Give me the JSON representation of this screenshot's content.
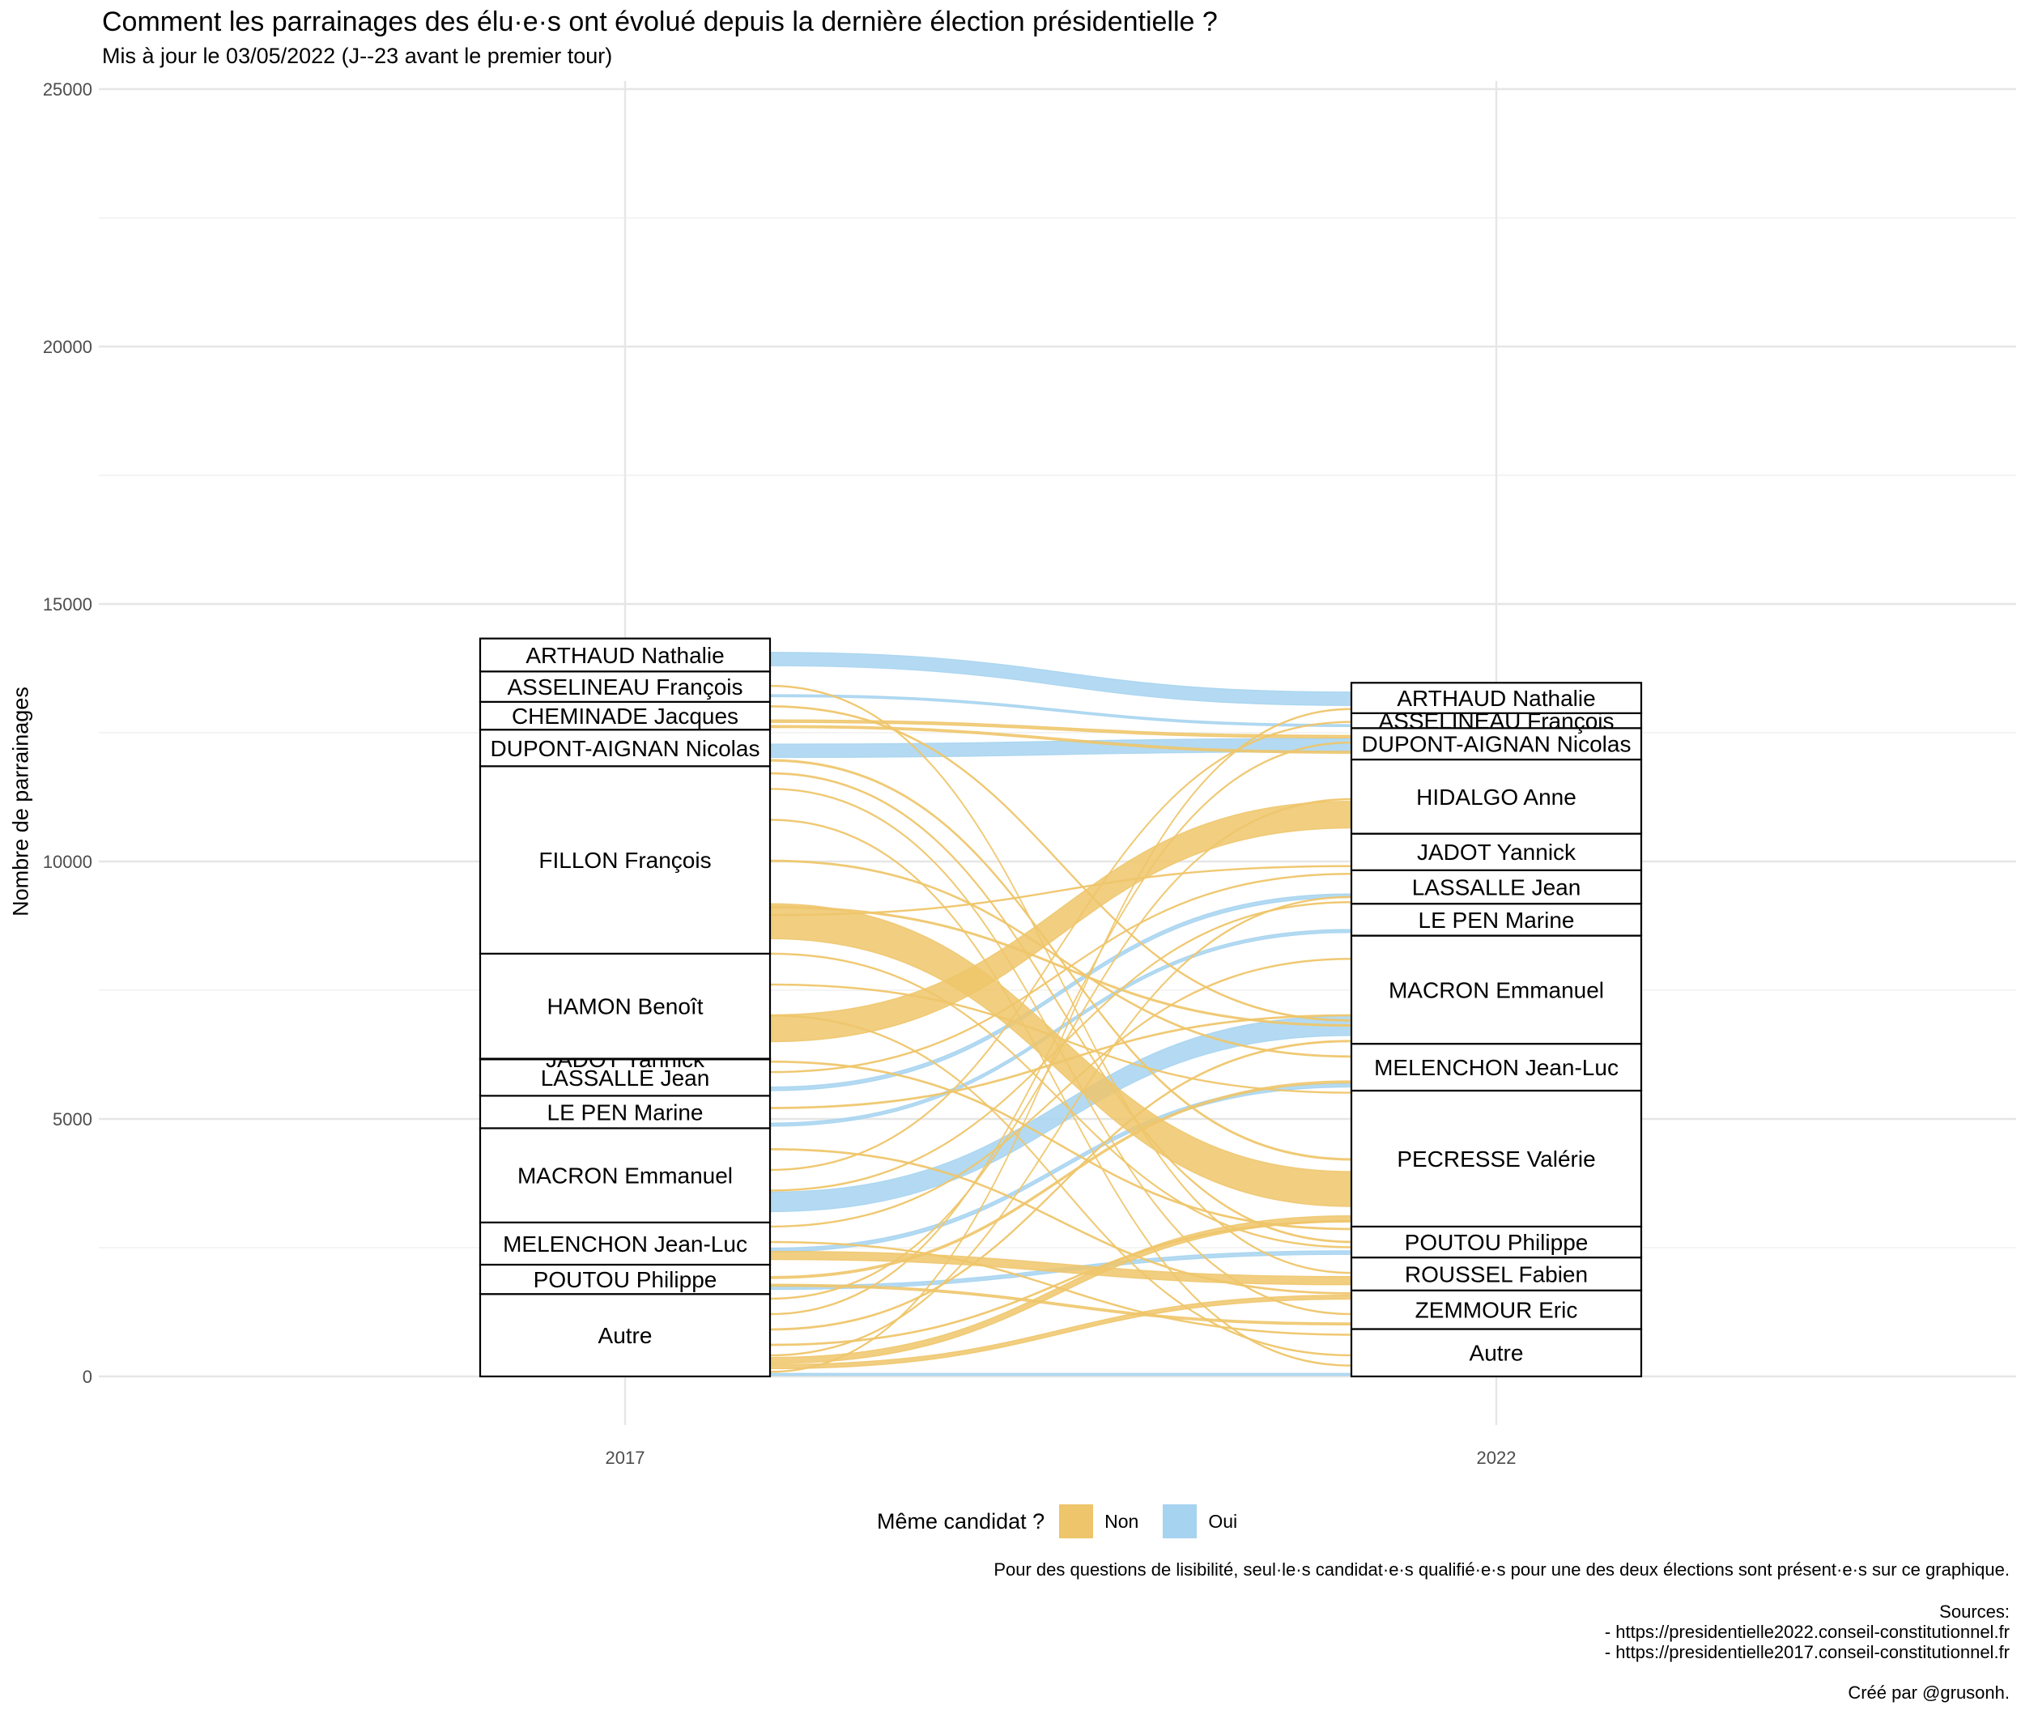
{
  "chart_data": {
    "type": "alluvial",
    "title": "Comment les parrainages des élu·e·s ont évolué depuis la dernière élection présidentielle ?",
    "subtitle": "Mis à jour le 03/05/2022 (J--23 avant le premier tour)",
    "ylabel": "Nombre de parrainages",
    "xlabel": "",
    "ylim": [
      0,
      25000
    ],
    "y_ticks": [
      0,
      5000,
      10000,
      15000,
      20000,
      25000
    ],
    "x_categories": [
      "2017",
      "2022"
    ],
    "grid": true,
    "legend_position": "bottom",
    "strata": {
      "2017": [
        {
          "label": "Autre",
          "value": 1600
        },
        {
          "label": "POUTOU Philippe",
          "value": 570
        },
        {
          "label": "MELENCHON Jean-Luc",
          "value": 820
        },
        {
          "label": "MACRON Emmanuel",
          "value": 1830
        },
        {
          "label": "LE PEN Marine",
          "value": 630
        },
        {
          "label": "LASSALLE Jean",
          "value": 708
        },
        {
          "label": "JADOT Yannick",
          "value": 12
        },
        {
          "label": "HAMON Benoît",
          "value": 2040
        },
        {
          "label": "FILLON François",
          "value": 3640
        },
        {
          "label": "DUPONT-AIGNAN Nicolas",
          "value": 710
        },
        {
          "label": "CHEMINADE Jacques",
          "value": 540
        },
        {
          "label": "ASSELINEAU François",
          "value": 590
        },
        {
          "label": "ARTHAUD Nathalie",
          "value": 640
        }
      ],
      "2022": [
        {
          "label": "Autre",
          "value": 920
        },
        {
          "label": "ZEMMOUR Eric",
          "value": 750
        },
        {
          "label": "ROUSSEL Fabien",
          "value": 640
        },
        {
          "label": "POUTOU Philippe",
          "value": 600
        },
        {
          "label": "PECRESSE Valérie",
          "value": 2640
        },
        {
          "label": "MELENCHON Jean-Luc",
          "value": 910
        },
        {
          "label": "MACRON Emmanuel",
          "value": 2100
        },
        {
          "label": "LE PEN Marine",
          "value": 620
        },
        {
          "label": "LASSALLE Jean",
          "value": 650
        },
        {
          "label": "JADOT Yannick",
          "value": 710
        },
        {
          "label": "HIDALGO Anne",
          "value": 1440
        },
        {
          "label": "DUPONT-AIGNAN Nicolas",
          "value": 610
        },
        {
          "label": "ASSELINEAU François",
          "value": 290
        },
        {
          "label": "ARTHAUD Nathalie",
          "value": 590
        }
      ]
    },
    "flows": [
      {
        "from_2017": 13800,
        "to_2022": 13030,
        "value": 260,
        "same": "Oui"
      },
      {
        "from_2017": 13200,
        "to_2022": 12620,
        "value": 40,
        "same": "Oui"
      },
      {
        "from_2017": 12020,
        "to_2022": 12130,
        "value": 260,
        "same": "Oui"
      },
      {
        "from_2017": 5550,
        "to_2022": 9300,
        "value": 70,
        "same": "Oui"
      },
      {
        "from_2017": 4860,
        "to_2022": 8620,
        "value": 60,
        "same": "Oui"
      },
      {
        "from_2017": 3200,
        "to_2022": 6620,
        "value": 380,
        "same": "Oui"
      },
      {
        "from_2017": 2420,
        "to_2022": 5620,
        "value": 70,
        "same": "Oui"
      },
      {
        "from_2017": 1690,
        "to_2022": 2370,
        "value": 70,
        "same": "Oui"
      },
      {
        "from_2017": 20,
        "to_2022": 20,
        "value": 40,
        "same": "Oui"
      },
      {
        "from_2017": 8500,
        "to_2022": 3300,
        "value": 680,
        "same": "Non"
      },
      {
        "from_2017": 6500,
        "to_2022": 10650,
        "value": 520,
        "same": "Non"
      },
      {
        "from_2017": 2270,
        "to_2022": 1780,
        "value": 160,
        "same": "Non"
      },
      {
        "from_2017": 12700,
        "to_2022": 12400,
        "value": 50,
        "same": "Non"
      },
      {
        "from_2017": 12600,
        "to_2022": 12100,
        "value": 40,
        "same": "Non"
      },
      {
        "from_2017": 11950,
        "to_2022": 4200,
        "value": 30,
        "same": "Non"
      },
      {
        "from_2017": 11700,
        "to_2022": 2600,
        "value": 25,
        "same": "Non"
      },
      {
        "from_2017": 11400,
        "to_2022": 1200,
        "value": 20,
        "same": "Non"
      },
      {
        "from_2017": 10800,
        "to_2022": 200,
        "value": 20,
        "same": "Non"
      },
      {
        "from_2017": 10000,
        "to_2022": 6200,
        "value": 25,
        "same": "Non"
      },
      {
        "from_2017": 9100,
        "to_2022": 6800,
        "value": 30,
        "same": "Non"
      },
      {
        "from_2017": 8950,
        "to_2022": 9900,
        "value": 20,
        "same": "Non"
      },
      {
        "from_2017": 7600,
        "to_2022": 5500,
        "value": 20,
        "same": "Non"
      },
      {
        "from_2017": 6100,
        "to_2022": 2850,
        "value": 25,
        "same": "Non"
      },
      {
        "from_2017": 5900,
        "to_2022": 9750,
        "value": 20,
        "same": "Non"
      },
      {
        "from_2017": 5200,
        "to_2022": 7000,
        "value": 25,
        "same": "Non"
      },
      {
        "from_2017": 4400,
        "to_2022": 1600,
        "value": 25,
        "same": "Non"
      },
      {
        "from_2017": 3600,
        "to_2022": 9200,
        "value": 20,
        "same": "Non"
      },
      {
        "from_2017": 2900,
        "to_2022": 8100,
        "value": 20,
        "same": "Non"
      },
      {
        "from_2017": 1900,
        "to_2022": 5700,
        "value": 40,
        "same": "Non"
      },
      {
        "from_2017": 1750,
        "to_2022": 1000,
        "value": 40,
        "same": "Non"
      },
      {
        "from_2017": 1500,
        "to_2022": 11200,
        "value": 20,
        "same": "Non"
      },
      {
        "from_2017": 1200,
        "to_2022": 12300,
        "value": 20,
        "same": "Non"
      },
      {
        "from_2017": 900,
        "to_2022": 6500,
        "value": 25,
        "same": "Non"
      },
      {
        "from_2017": 600,
        "to_2022": 3000,
        "value": 25,
        "same": "Non"
      },
      {
        "from_2017": 400,
        "to_2022": 9300,
        "value": 20,
        "same": "Non"
      },
      {
        "from_2017": 250,
        "to_2022": 3000,
        "value": 120,
        "same": "Non"
      },
      {
        "from_2017": 150,
        "to_2022": 1500,
        "value": 80,
        "same": "Non"
      },
      {
        "from_2017": 80,
        "to_2022": 12950,
        "value": 20,
        "same": "Non"
      },
      {
        "from_2017": 13000,
        "to_2022": 6900,
        "value": 25,
        "same": "Non"
      },
      {
        "from_2017": 13400,
        "to_2022": 2000,
        "value": 20,
        "same": "Non"
      },
      {
        "from_2017": 8200,
        "to_2022": 2500,
        "value": 20,
        "same": "Non"
      },
      {
        "from_2017": 7000,
        "to_2022": 400,
        "value": 20,
        "same": "Non"
      },
      {
        "from_2017": 4000,
        "to_2022": 12700,
        "value": 20,
        "same": "Non"
      },
      {
        "from_2017": 2600,
        "to_2022": 800,
        "value": 20,
        "same": "Non"
      }
    ]
  },
  "legend": {
    "title": "Même candidat ?",
    "items": [
      {
        "label": "Non",
        "color": "#eec56a"
      },
      {
        "label": "Oui",
        "color": "#a6d3f0"
      }
    ]
  },
  "caption": {
    "note": "Pour des questions de lisibilité, seul·le·s candidat·e·s qualifié·e·s pour une des deux élections sont présent·e·s sur ce graphique.",
    "sources_title": "Sources:",
    "source_1": "- https://presidentielle2022.conseil-constitutionnel.fr",
    "source_2": "- https://presidentielle2017.conseil-constitutionnel.fr",
    "credit": "Créé par @grusonh."
  }
}
